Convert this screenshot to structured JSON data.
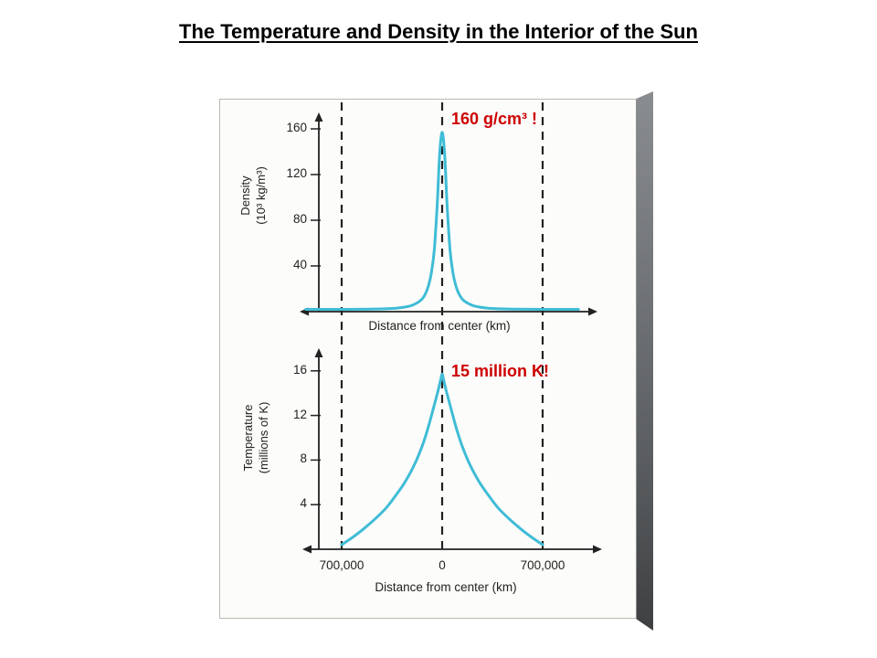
{
  "title": "The Temperature and Density in the Interior of the Sun",
  "colors": {
    "curve": "#3fbcd6",
    "axis": "#222222",
    "annotation_red": "#cc0000",
    "edge_grey": "#6b6e71",
    "paper": "#fcfcfa"
  },
  "chart_data": [
    {
      "type": "line",
      "name": "density-profile",
      "ylabel": "Density\n(10³ kg/m³)",
      "xlabel": "Distance from center (km)",
      "yticks": [
        160,
        120,
        80,
        40
      ],
      "ylim": [
        0,
        175
      ],
      "xlim_km": [
        -950000,
        950000
      ],
      "dashed_lines_km": [
        -700000,
        0,
        700000
      ],
      "annotation": "160 g/cm³ !",
      "series": [
        {
          "name": "density",
          "color": "#3fbcd6",
          "x": [
            -950000,
            -700000,
            -500000,
            -400000,
            -320000,
            -260000,
            -210000,
            -170000,
            -140000,
            -115000,
            -95000,
            -75000,
            -55000,
            -35000,
            -18000,
            0,
            18000,
            35000,
            55000,
            75000,
            95000,
            115000,
            140000,
            170000,
            210000,
            260000,
            320000,
            400000,
            500000,
            700000,
            950000
          ],
          "y": [
            0,
            0,
            0.2,
            0.5,
            1,
            2,
            3.5,
            6,
            9,
            14,
            21,
            32,
            52,
            90,
            135,
            155,
            135,
            90,
            52,
            32,
            21,
            14,
            9,
            6,
            3.5,
            2,
            1,
            0.5,
            0.2,
            0,
            0
          ]
        }
      ]
    },
    {
      "type": "line",
      "name": "temperature-profile",
      "ylabel": "Temperature\n(millions of K)",
      "xlabel": "Distance from center (km)",
      "yticks": [
        16,
        12,
        8,
        4
      ],
      "ylim": [
        0,
        17
      ],
      "xlim_km": [
        -700000,
        700000
      ],
      "xticks_km": [
        -700000,
        0,
        700000
      ],
      "xtick_labels": [
        "700,000",
        "0",
        "700,000"
      ],
      "annotation": "15 million K!",
      "series": [
        {
          "name": "temperature",
          "color": "#3fbcd6",
          "x": [
            -700000,
            -620000,
            -540000,
            -460000,
            -390000,
            -330000,
            -270000,
            -220000,
            -175000,
            -135000,
            -100000,
            -70000,
            -45000,
            -25000,
            -10000,
            0,
            10000,
            25000,
            45000,
            70000,
            100000,
            135000,
            175000,
            220000,
            270000,
            330000,
            390000,
            460000,
            540000,
            620000,
            700000
          ],
          "y": [
            0.2,
            0.9,
            1.7,
            2.6,
            3.5,
            4.5,
            5.6,
            6.7,
            7.9,
            9.2,
            10.6,
            12,
            13.2,
            14.2,
            15,
            15.5,
            15,
            14.2,
            13.2,
            12,
            10.6,
            9.2,
            7.9,
            6.7,
            5.6,
            4.5,
            3.5,
            2.6,
            1.7,
            0.9,
            0.2
          ]
        }
      ]
    }
  ]
}
